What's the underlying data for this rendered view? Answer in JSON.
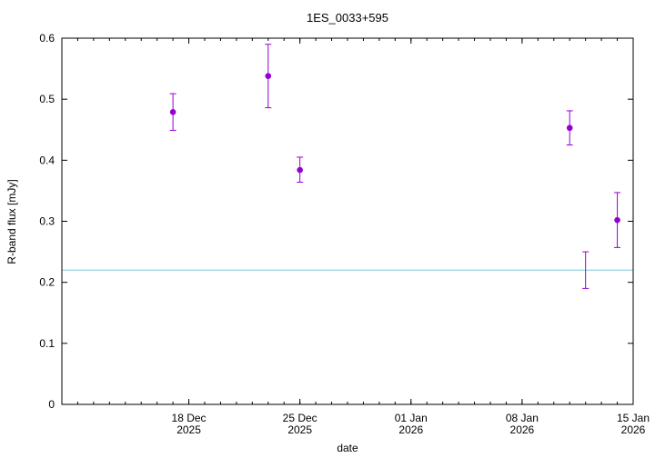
{
  "chart_data": {
    "type": "scatter",
    "title": "1ES_0033+595",
    "xlabel": "date",
    "ylabel": "R-band flux [mJy]",
    "ylim": [
      0,
      0.6
    ],
    "xlim": [
      "2025-12-10",
      "2026-01-15"
    ],
    "grid": false,
    "legend": "none",
    "y_ticks": [
      "0",
      "0.1",
      "0.2",
      "0.3",
      "0.4",
      "0.5",
      "0.6"
    ],
    "x_ticks": [
      {
        "date": "2025-12-18",
        "line1": "18 Dec",
        "line2": "2025"
      },
      {
        "date": "2025-12-25",
        "line1": "25 Dec",
        "line2": "2025"
      },
      {
        "date": "2026-01-01",
        "line1": "01 Jan",
        "line2": "2026"
      },
      {
        "date": "2026-01-08",
        "line1": "08 Jan",
        "line2": "2026"
      },
      {
        "date": "2026-01-15",
        "line1": "15 Jan",
        "line2": "2026"
      }
    ],
    "series": [
      {
        "color": "#9400d3",
        "points": [
          {
            "x": "2025-12-17",
            "y": 0.479,
            "err_low": 0.449,
            "err_high": 0.509
          },
          {
            "x": "2025-12-23",
            "y": 0.538,
            "err_low": 0.486,
            "err_high": 0.59
          },
          {
            "x": "2025-12-25",
            "y": 0.384,
            "err_low": 0.364,
            "err_high": 0.405
          },
          {
            "x": "2026-01-11",
            "y": 0.453,
            "err_low": 0.425,
            "err_high": 0.481
          },
          {
            "x": "2026-01-12",
            "y": null,
            "err_low": 0.19,
            "err_high": 0.25
          },
          {
            "x": "2026-01-14",
            "y": 0.302,
            "err_low": 0.257,
            "err_high": 0.347
          }
        ]
      }
    ],
    "reference_line": {
      "y": 0.22,
      "color": "#7ec8d8"
    }
  }
}
